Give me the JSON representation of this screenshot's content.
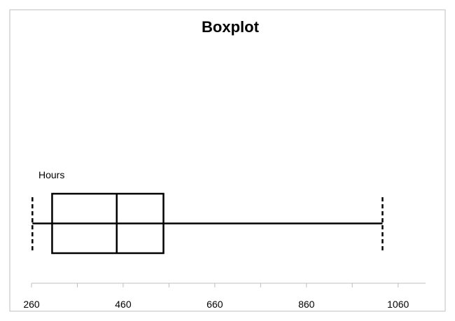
{
  "chart_data": {
    "type": "box",
    "title": "Boxplot",
    "orientation": "horizontal",
    "xlim": [
      260,
      1120
    ],
    "tick_labels": [
      "260",
      "460",
      "660",
      "860",
      "1060"
    ],
    "ticks": [
      260,
      460,
      660,
      860,
      1060
    ],
    "minor_tick_step": 100,
    "grid": false,
    "series": [
      {
        "name": "Hours",
        "min": 262,
        "q1": 305,
        "median": 446,
        "q3": 548,
        "max": 1026
      }
    ]
  }
}
